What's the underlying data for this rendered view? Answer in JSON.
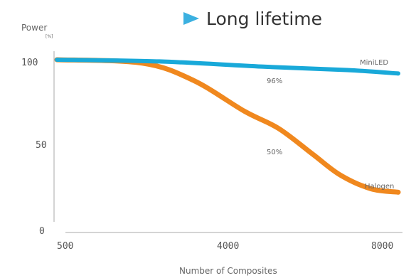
{
  "chart_data": {
    "type": "line",
    "title": "Long lifetime",
    "ylabel": "Power",
    "yunit": "[%]",
    "xlabel": "Number of Composites",
    "xticks": [
      "500",
      "4000",
      "8000"
    ],
    "yticks": [
      "100",
      "50",
      "0"
    ],
    "ylim": [
      0,
      100
    ],
    "grid": false,
    "series": [
      {
        "name": "MiniLED",
        "color": "#19a9d9",
        "label": "96%",
        "points": [
          [
            0,
            100
          ],
          [
            0.3,
            99
          ],
          [
            0.6,
            96
          ],
          [
            0.85,
            94
          ],
          [
            1,
            92
          ]
        ]
      },
      {
        "name": "Halogen",
        "color": "#f0881e",
        "label": "50%",
        "points": [
          [
            0,
            100
          ],
          [
            0.25,
            98
          ],
          [
            0.4,
            88
          ],
          [
            0.55,
            70
          ],
          [
            0.65,
            60
          ],
          [
            0.75,
            45
          ],
          [
            0.83,
            33
          ],
          [
            0.92,
            25
          ],
          [
            1,
            23
          ]
        ]
      }
    ],
    "accent": "#3bb0e0"
  }
}
